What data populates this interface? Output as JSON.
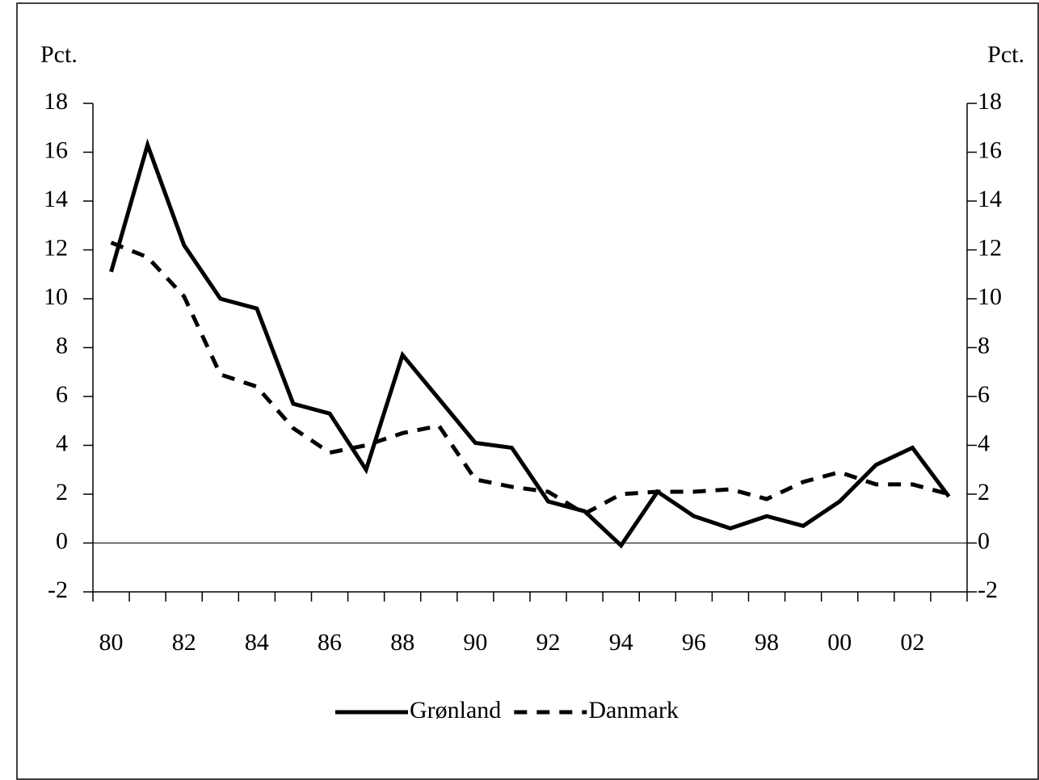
{
  "chart_data": {
    "type": "line",
    "ylabel": "Pct.",
    "y2label": "Pct.",
    "categories": [
      "80",
      null,
      "82",
      null,
      "84",
      null,
      "86",
      null,
      "88",
      null,
      "90",
      null,
      "92",
      null,
      "94",
      null,
      "96",
      null,
      "98",
      null,
      "00",
      null,
      "02",
      null
    ],
    "series": [
      {
        "name": "Grønland",
        "color": "#000000",
        "style": "solid",
        "values": [
          11.1,
          16.3,
          12.2,
          10.0,
          9.6,
          5.7,
          5.3,
          3.0,
          7.7,
          5.9,
          4.1,
          3.9,
          1.7,
          1.3,
          -0.1,
          2.1,
          1.1,
          0.6,
          1.1,
          0.7,
          1.7,
          3.2,
          3.9,
          1.9
        ]
      },
      {
        "name": "Danmark",
        "color": "#000000",
        "style": "dashed",
        "values": [
          12.3,
          11.7,
          10.1,
          6.9,
          6.4,
          4.7,
          3.7,
          4.0,
          4.5,
          4.8,
          2.6,
          2.3,
          2.1,
          1.2,
          2.0,
          2.1,
          2.1,
          2.2,
          1.8,
          2.5,
          2.9,
          2.4,
          2.4,
          2.0
        ]
      }
    ],
    "ylim": [
      -2,
      18
    ],
    "yticks": [
      -2,
      0,
      2,
      4,
      6,
      8,
      10,
      12,
      14,
      16,
      18
    ],
    "y2lim": [
      -2,
      18
    ],
    "y2ticks": [
      -2,
      0,
      2,
      4,
      6,
      8,
      10,
      12,
      14,
      16,
      18
    ],
    "zero_line": true,
    "legend": "bottom"
  }
}
